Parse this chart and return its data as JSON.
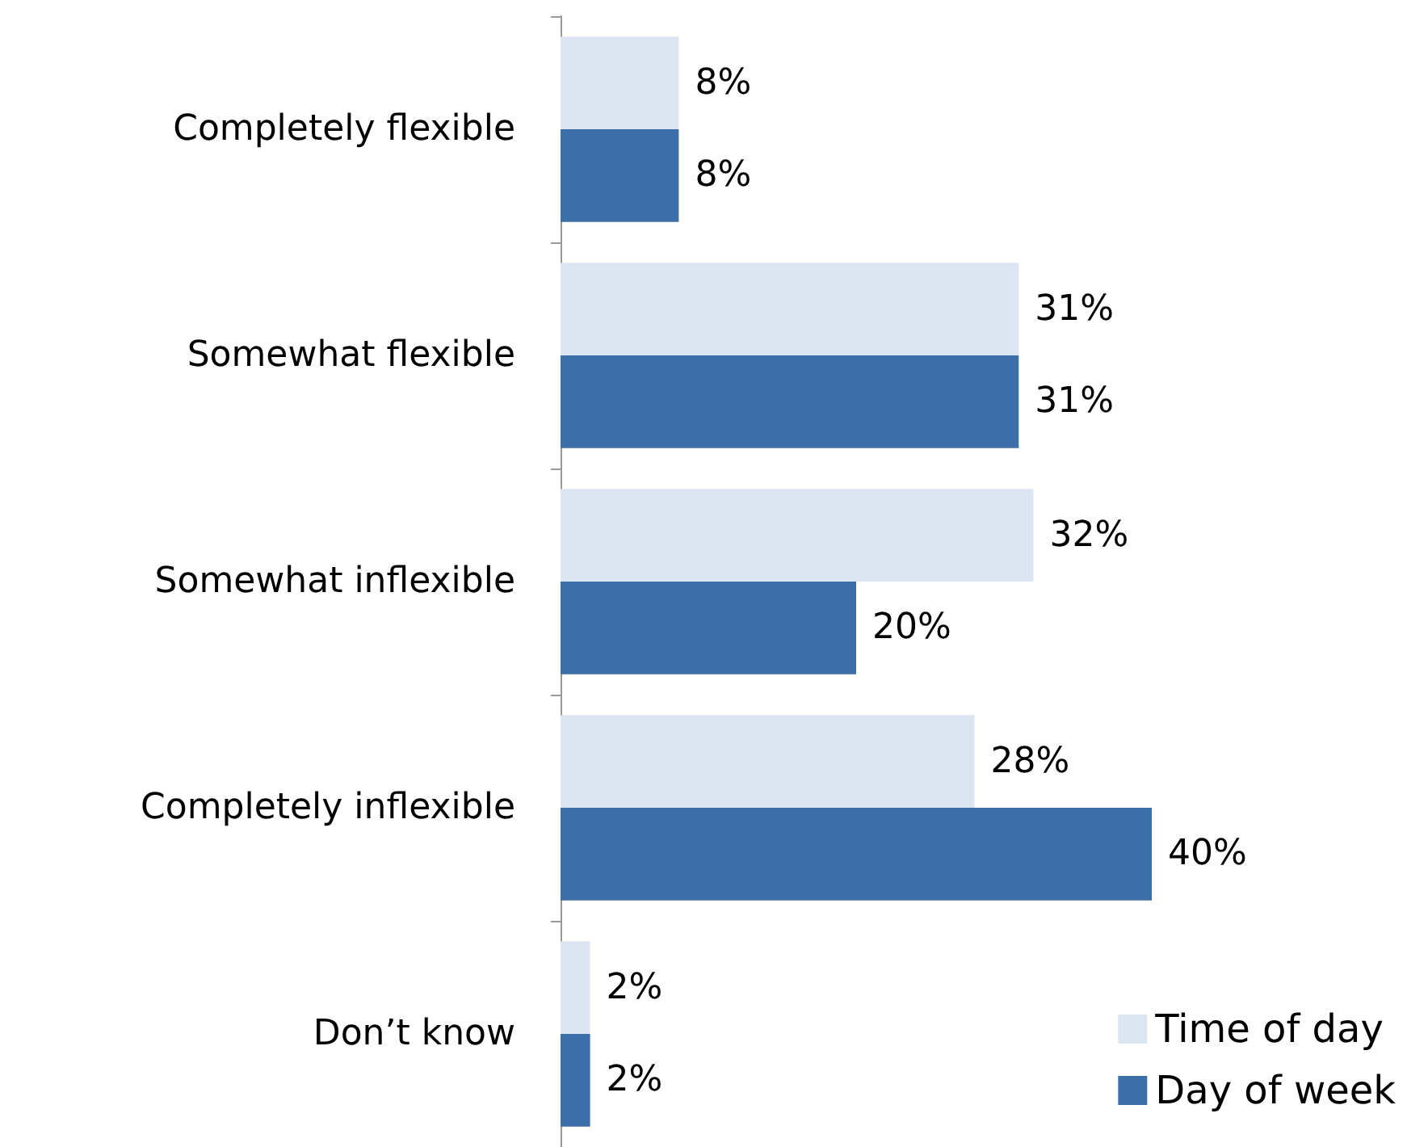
{
  "chart_data": {
    "type": "bar",
    "orientation": "horizontal",
    "categories": [
      "Completely flexible",
      "Somewhat flexible",
      "Somewhat inflexible",
      "Completely inflexible",
      "Don’t know"
    ],
    "series": [
      {
        "name": "Time of day",
        "color": "#dce6f2",
        "values": [
          8,
          31,
          32,
          28,
          2
        ],
        "value_labels": [
          "8%",
          "31%",
          "32%",
          "28%",
          "2%"
        ]
      },
      {
        "name": "Day of week",
        "color": "#3c6ea8",
        "values": [
          8,
          31,
          20,
          40,
          2
        ],
        "value_labels": [
          "8%",
          "31%",
          "20%",
          "40%",
          "2%"
        ]
      }
    ],
    "legend": "bottom right"
  }
}
